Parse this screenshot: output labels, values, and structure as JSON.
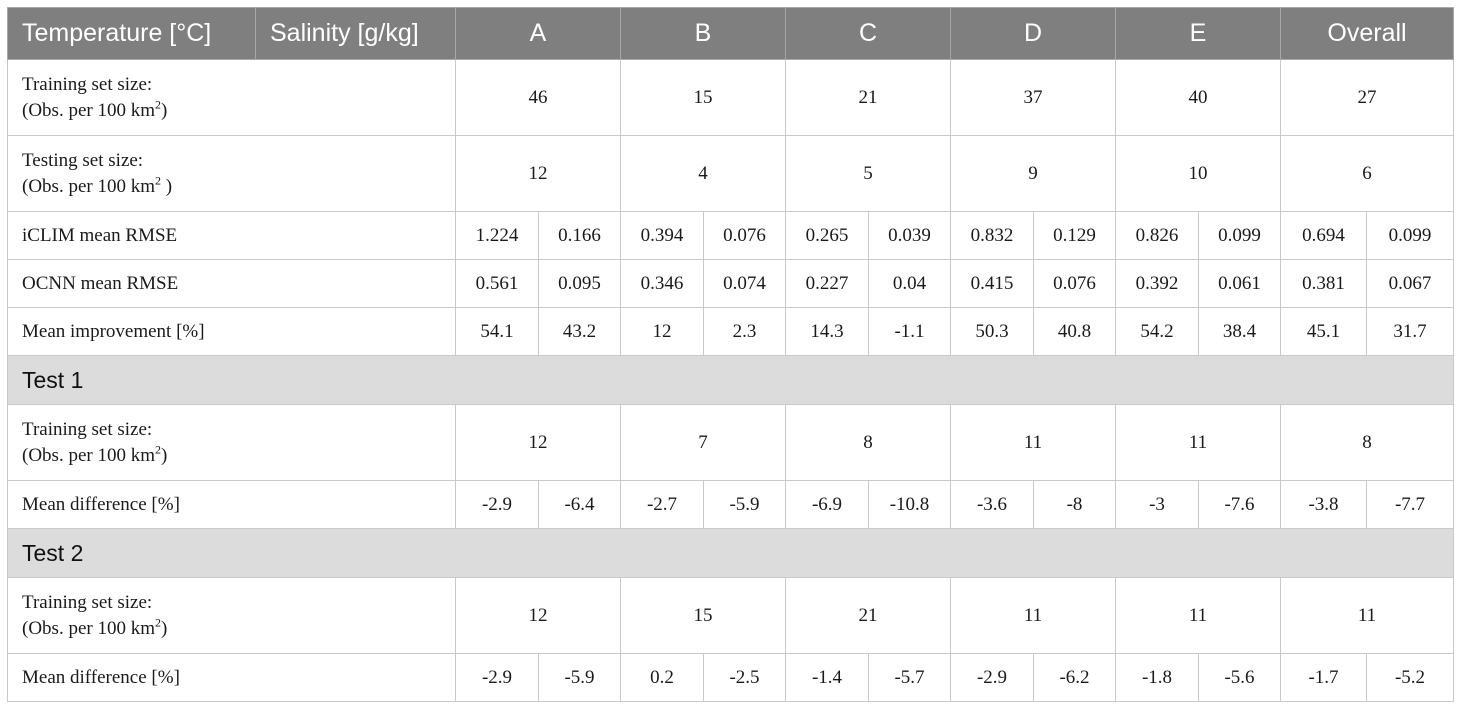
{
  "header": {
    "temperature": "Temperature [°C]",
    "salinity": "Salinity [g/kg]",
    "regions": [
      "A",
      "B",
      "C",
      "D",
      "E",
      "Overall"
    ]
  },
  "labels": {
    "training_size_line1": "Training set size:",
    "training_size_line2": "(Obs. per 100 km",
    "testing_size_line1": "Testing set size:",
    "testing_size_line2": "(Obs. per 100 km",
    "sup2": "2",
    "close": ")",
    "close_space": " )",
    "iclim": "iCLIM mean RMSE",
    "ocnn": "OCNN mean RMSE",
    "improvement": "Mean improvement [%]",
    "mean_difference": "Mean difference [%]",
    "test1": "Test 1",
    "test2": "Test 2"
  },
  "rows": {
    "training_size": [
      "46",
      "15",
      "21",
      "37",
      "40",
      "27"
    ],
    "testing_size": [
      "12",
      "4",
      "5",
      "9",
      "10",
      "6"
    ],
    "iclim": [
      [
        "1.224",
        "0.166"
      ],
      [
        "0.394",
        "0.076"
      ],
      [
        "0.265",
        "0.039"
      ],
      [
        "0.832",
        "0.129"
      ],
      [
        "0.826",
        "0.099"
      ],
      [
        "0.694",
        "0.099"
      ]
    ],
    "ocnn": [
      [
        "0.561",
        "0.095"
      ],
      [
        "0.346",
        "0.074"
      ],
      [
        "0.227",
        "0.04"
      ],
      [
        "0.415",
        "0.076"
      ],
      [
        "0.392",
        "0.061"
      ],
      [
        "0.381",
        "0.067"
      ]
    ],
    "improvement": [
      [
        "54.1",
        "43.2"
      ],
      [
        "12",
        "2.3"
      ],
      [
        "14.3",
        "-1.1"
      ],
      [
        "50.3",
        "40.8"
      ],
      [
        "54.2",
        "38.4"
      ],
      [
        "45.1",
        "31.7"
      ]
    ]
  },
  "test1": {
    "training_size": [
      "12",
      "7",
      "8",
      "11",
      "11",
      "8"
    ],
    "mean_difference": [
      [
        "-2.9",
        "-6.4"
      ],
      [
        "-2.7",
        "-5.9"
      ],
      [
        "-6.9",
        "-10.8"
      ],
      [
        "-3.6",
        "-8"
      ],
      [
        "-3",
        "-7.6"
      ],
      [
        "-3.8",
        "-7.7"
      ]
    ]
  },
  "test2": {
    "training_size": [
      "12",
      "15",
      "21",
      "11",
      "11",
      "11"
    ],
    "mean_difference": [
      [
        "-2.9",
        "-5.9"
      ],
      [
        "0.2",
        "-2.5"
      ],
      [
        "-1.4",
        "-5.7"
      ],
      [
        "-2.9",
        "-6.2"
      ],
      [
        "-1.8",
        "-5.6"
      ],
      [
        "-1.7",
        "-5.2"
      ]
    ]
  }
}
